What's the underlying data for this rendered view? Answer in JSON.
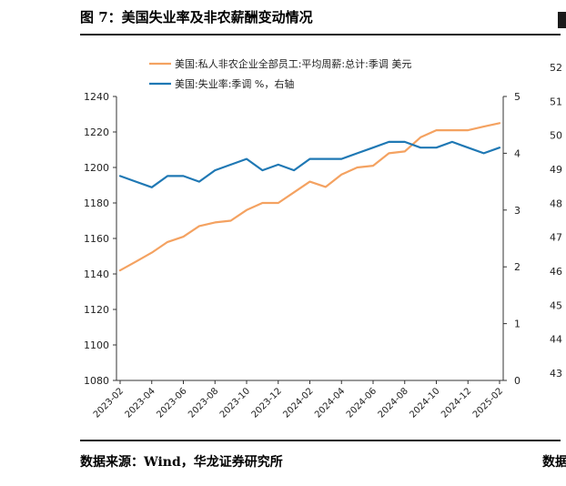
{
  "figure_title": "图 7：美国失业率及非农薪酬变动情况",
  "source_text": "数据来源：Wind，华龙证券研究所",
  "right_panel": {
    "source_fragment": "数据",
    "y_ticks": [
      "52",
      "51",
      "50",
      "49",
      "48",
      "47",
      "46",
      "45",
      "44",
      "43"
    ]
  },
  "colors": {
    "wage": "#F4A261",
    "unemployment": "#1F78B4",
    "axis": "#333333"
  },
  "chart_data": {
    "type": "line",
    "x": [
      "2023-02",
      "2023-03",
      "2023-04",
      "2023-05",
      "2023-06",
      "2023-07",
      "2023-08",
      "2023-09",
      "2023-10",
      "2023-11",
      "2023-12",
      "2024-01",
      "2024-02",
      "2024-03",
      "2024-04",
      "2024-05",
      "2024-06",
      "2024-07",
      "2024-08",
      "2024-09",
      "2024-10",
      "2024-11",
      "2024-12",
      "2025-01",
      "2025-02"
    ],
    "x_tick_labels": [
      "2023-02",
      "2023-04",
      "2023-06",
      "2023-08",
      "2023-10",
      "2023-12",
      "2024-02",
      "2024-04",
      "2024-06",
      "2024-08",
      "2024-10",
      "2024-12",
      "2025-02"
    ],
    "series": [
      {
        "name": "美国:私人非农企业全部员工:平均周薪:总计:季调 美元",
        "axis": "left",
        "values": [
          1142,
          1147,
          1152,
          1158,
          1161,
          1167,
          1169,
          1170,
          1176,
          1180,
          1180,
          1186,
          1192,
          1189,
          1196,
          1200,
          1201,
          1208,
          1209,
          1217,
          1221,
          1221,
          1221,
          1223,
          1225
        ]
      },
      {
        "name": "美国:失业率:季调 %，右轴",
        "axis": "right",
        "values": [
          3.6,
          3.5,
          3.4,
          3.6,
          3.6,
          3.5,
          3.7,
          3.8,
          3.9,
          3.7,
          3.8,
          3.7,
          3.9,
          3.9,
          3.9,
          4.0,
          4.1,
          4.2,
          4.2,
          4.1,
          4.1,
          4.2,
          4.1,
          4.0,
          4.1
        ]
      }
    ],
    "y_left": {
      "ticks": [
        "1240",
        "1220",
        "1200",
        "1180",
        "1160",
        "1140",
        "1120",
        "1100",
        "1080"
      ],
      "lim": [
        1080,
        1240
      ]
    },
    "y_right": {
      "ticks": [
        "5",
        "4",
        "3",
        "2",
        "1",
        "0"
      ],
      "lim": [
        0,
        5
      ]
    },
    "legend_position": "top-left",
    "grid": false
  }
}
